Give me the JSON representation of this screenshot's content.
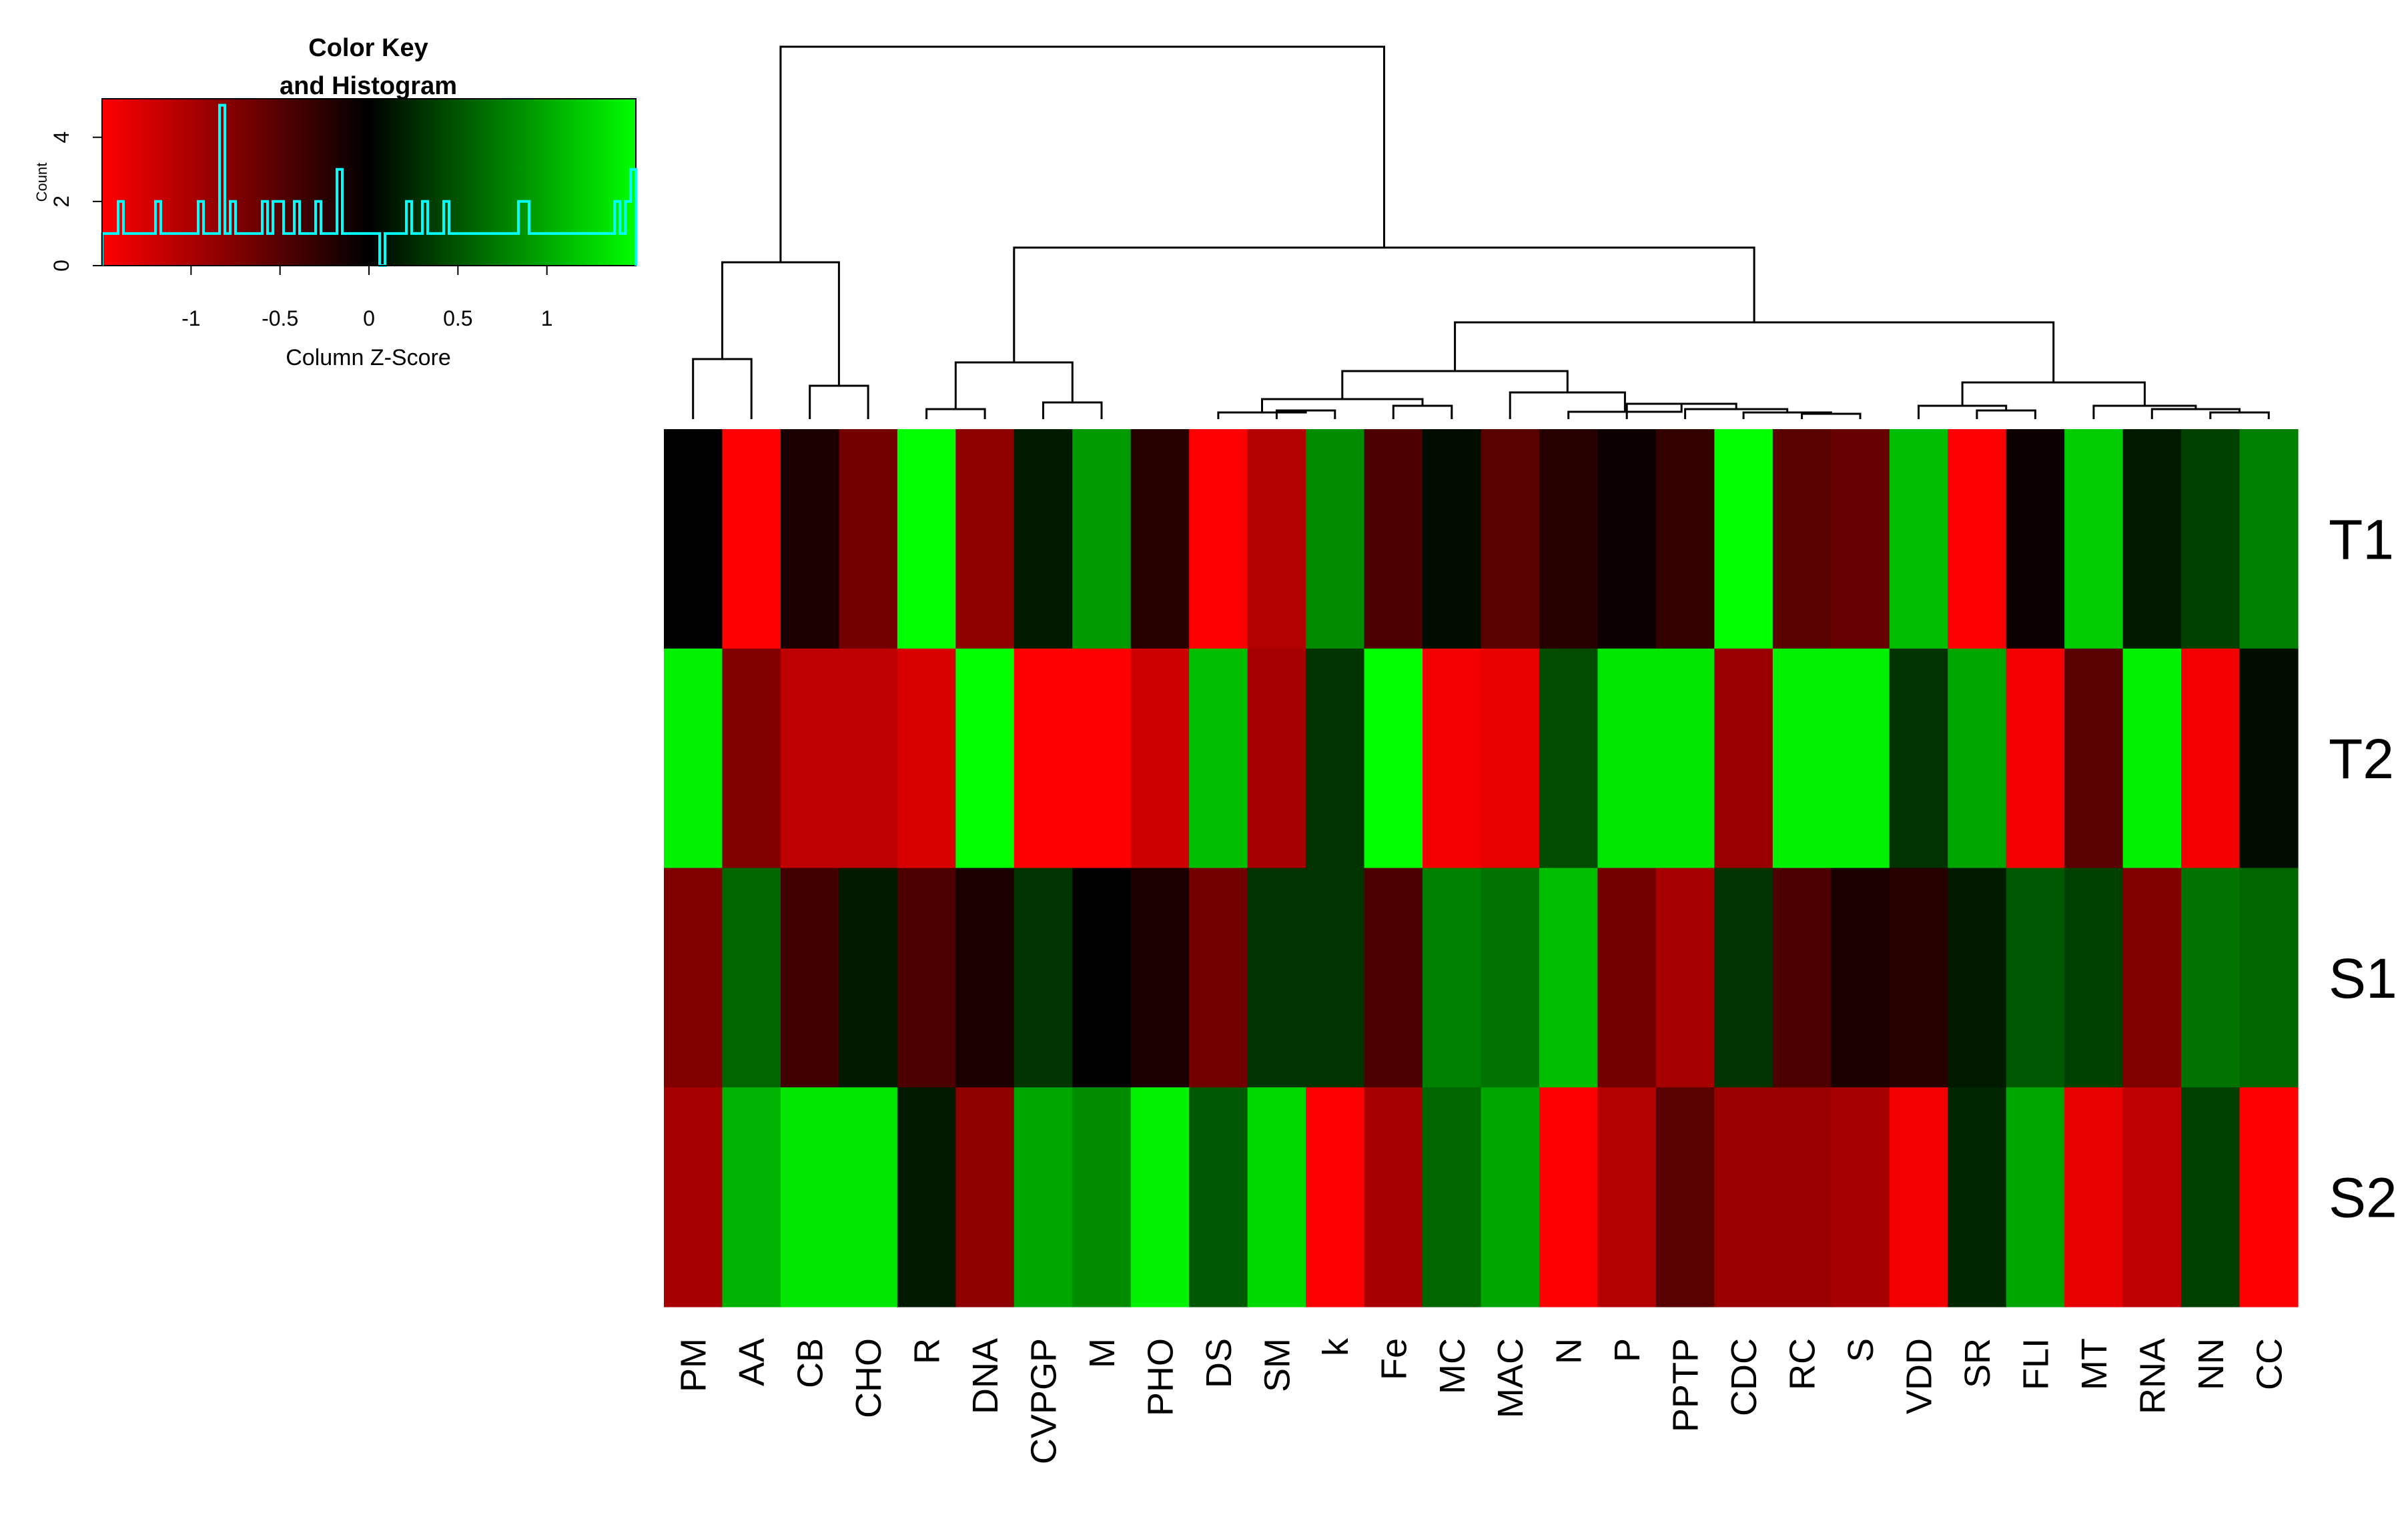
{
  "chart_data": {
    "type": "heatmap",
    "title": "",
    "columns": [
      "PM",
      "AA",
      "CB",
      "CHO",
      "R",
      "DNA",
      "CVPGP",
      "M",
      "PHO",
      "DS",
      "SM",
      "k",
      "Fe",
      "MC",
      "MAC",
      "N",
      "P",
      "PPTP",
      "CDC",
      "RC",
      "S",
      "VDD",
      "SR",
      "FLI",
      "MT",
      "RNA",
      "NN",
      "CC"
    ],
    "rows": [
      "T1",
      "T2",
      "S1",
      "S2"
    ],
    "values": [
      [
        0.0,
        -1.0,
        -0.1,
        -0.45,
        1.0,
        -0.55,
        0.1,
        0.6,
        -0.15,
        -1.0,
        -0.7,
        0.55,
        -0.3,
        0.05,
        -0.35,
        -0.15,
        -0.05,
        -0.2,
        1.0,
        -0.35,
        -0.4,
        0.75,
        -1.0,
        -0.05,
        0.8,
        0.1,
        0.25,
        0.5
      ],
      [
        0.95,
        -0.5,
        -0.75,
        -0.75,
        -0.85,
        1.0,
        -1.0,
        -1.0,
        -0.8,
        0.75,
        -0.65,
        0.2,
        1.0,
        -0.95,
        -0.9,
        0.3,
        0.9,
        0.9,
        -0.6,
        0.95,
        0.95,
        0.2,
        0.65,
        -0.95,
        -0.35,
        0.95,
        -0.95,
        0.05
      ],
      [
        -0.5,
        0.4,
        -0.25,
        0.1,
        -0.3,
        -0.1,
        0.2,
        0.0,
        -0.1,
        -0.45,
        0.2,
        0.2,
        -0.3,
        0.5,
        0.45,
        0.75,
        -0.45,
        -0.65,
        0.2,
        -0.3,
        -0.1,
        -0.15,
        0.1,
        0.35,
        0.25,
        -0.5,
        0.45,
        0.4
      ],
      [
        -0.65,
        0.7,
        0.9,
        0.9,
        0.1,
        -0.55,
        0.65,
        0.55,
        0.95,
        0.35,
        0.85,
        -1.0,
        -0.65,
        0.4,
        0.65,
        -1.0,
        -0.7,
        -0.35,
        -0.6,
        -0.6,
        -0.65,
        -0.95,
        0.15,
        0.65,
        -0.9,
        -0.75,
        0.25,
        -1.0
      ]
    ],
    "color_scale": {
      "low": "#ff0000",
      "mid": "#000000",
      "high": "#00ff00"
    },
    "color_key": {
      "title_line1": "Color Key",
      "title_line2": "and Histogram",
      "xlabel": "Column Z-Score",
      "ylabel": "Count",
      "x_ticks": [
        "-1",
        "-0.5",
        "0",
        "0.5",
        "1"
      ],
      "x_tick_values": [
        -1,
        -0.5,
        0,
        0.5,
        1
      ],
      "x_range": [
        -1.5,
        1.5
      ],
      "y_ticks": [
        "0",
        "2",
        "4"
      ],
      "y_tick_values": [
        0,
        2,
        4
      ],
      "y_range": [
        0,
        5.2
      ],
      "histogram_color": "#00ffff",
      "histogram_counts": [
        1,
        1,
        1,
        2,
        1,
        1,
        1,
        1,
        1,
        1,
        2,
        1,
        1,
        1,
        1,
        1,
        1,
        1,
        2,
        1,
        1,
        1,
        5,
        1,
        2,
        1,
        1,
        1,
        1,
        1,
        2,
        1,
        2,
        2,
        1,
        1,
        2,
        1,
        1,
        1,
        2,
        1,
        1,
        1,
        3,
        1,
        1,
        1,
        1,
        1,
        1,
        1,
        0,
        1,
        1,
        1,
        1,
        2,
        1,
        1,
        2,
        1,
        1,
        1,
        2,
        1,
        1,
        1,
        1,
        1,
        1,
        1,
        1,
        1,
        1,
        1,
        1,
        1,
        2,
        2,
        1,
        1,
        1,
        1,
        1,
        1,
        1,
        1,
        1,
        1,
        1,
        1,
        1,
        1,
        1,
        1,
        2,
        1,
        2,
        3
      ]
    }
  }
}
